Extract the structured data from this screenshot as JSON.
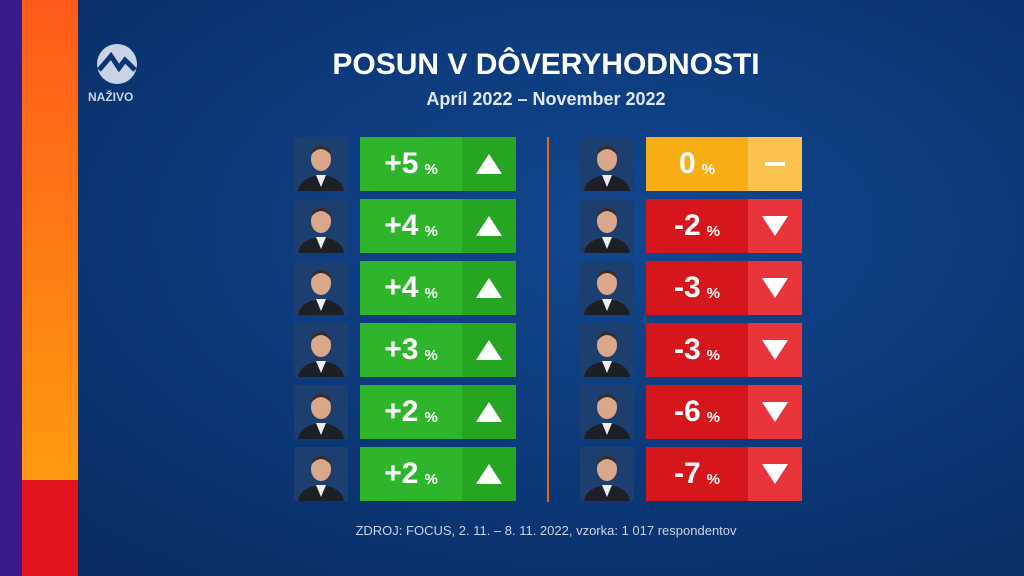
{
  "logo": {
    "label": "NAŽIVO"
  },
  "header": {
    "title": "POSUN V DÔVERYHODNOSTI",
    "subtitle": "Apríl 2022 – November 2022"
  },
  "unit": "%",
  "left": [
    "+5",
    "+4",
    "+4",
    "+3",
    "+2",
    "+2"
  ],
  "right": [
    "0",
    "-2",
    "-3",
    "-3",
    "-6",
    "-7"
  ],
  "footer": "ZDROJ: FOCUS, 2. 11. – 8. 11. 2022, vzorka: 1 017 respondentov"
}
